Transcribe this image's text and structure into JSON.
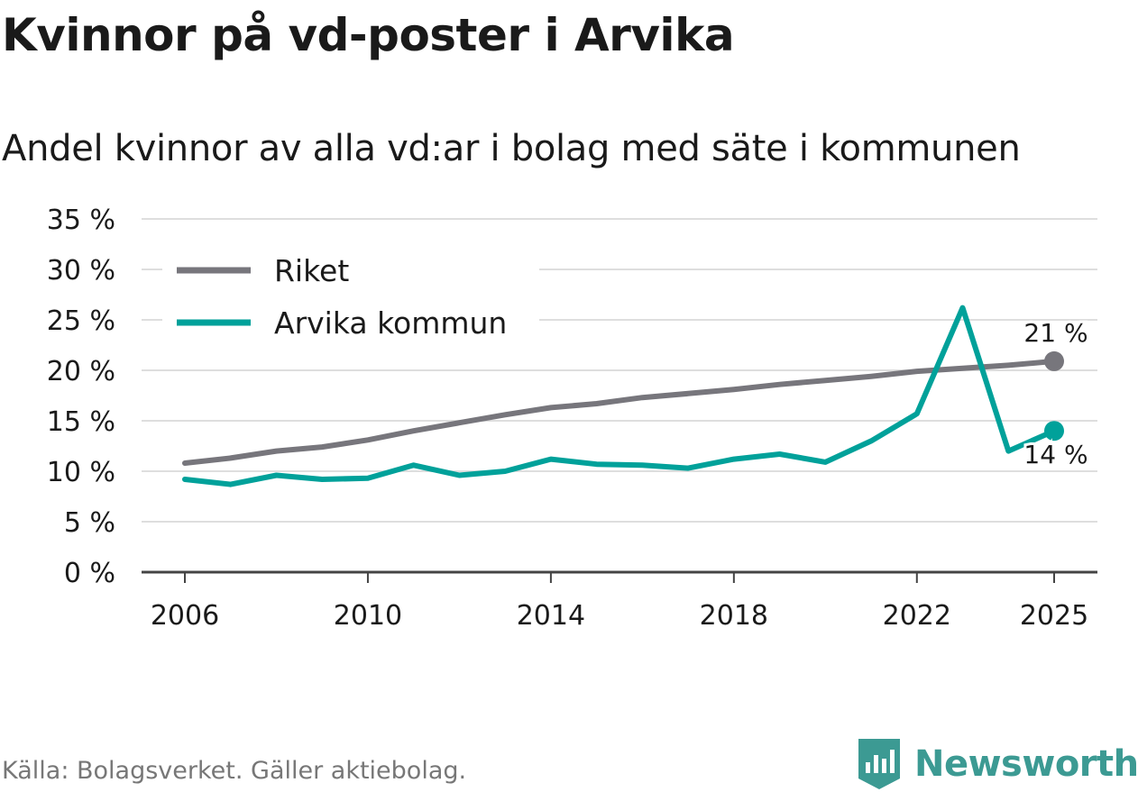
{
  "title": "Kvinnor på vd-poster i Arvika",
  "subtitle": "Andel kvinnor av alla vd:ar i bolag med säte i kommunen",
  "source": "Källa: Bolagsverket. Gäller aktiebolag.",
  "brand": {
    "name": "Newsworthy",
    "icon": "newsworthy-logo-icon"
  },
  "colors": {
    "riket": "#77767c",
    "arvika": "#00a19a",
    "grid": "#dedede",
    "axis": "#444444"
  },
  "chart_data": {
    "type": "line",
    "title": "Kvinnor på vd-poster i Arvika",
    "subtitle": "Andel kvinnor av alla vd:ar i bolag med säte i kommunen",
    "xlabel": "",
    "ylabel": "",
    "x": [
      2006,
      2007,
      2008,
      2009,
      2010,
      2011,
      2012,
      2013,
      2014,
      2015,
      2016,
      2017,
      2018,
      2019,
      2020,
      2021,
      2022,
      2023,
      2024,
      2025
    ],
    "x_ticks": [
      2006,
      2010,
      2014,
      2018,
      2022,
      2025
    ],
    "x_tick_labels": [
      "2006",
      "2010",
      "2014",
      "2018",
      "2022",
      "2025"
    ],
    "ylim": [
      0,
      35
    ],
    "y_ticks": [
      0,
      5,
      10,
      15,
      20,
      25,
      30,
      35
    ],
    "y_tick_labels": [
      "0 %",
      "5 %",
      "10 %",
      "15 %",
      "20 %",
      "25 %",
      "30 %",
      "35 %"
    ],
    "grid": true,
    "legend_position": "top-left",
    "series": [
      {
        "name": "Riket",
        "color": "#77767c",
        "values": [
          10.8,
          11.3,
          12.0,
          12.4,
          13.1,
          14.0,
          14.8,
          15.6,
          16.3,
          16.7,
          17.3,
          17.7,
          18.1,
          18.6,
          19.0,
          19.4,
          19.9,
          20.2,
          20.5,
          20.9
        ],
        "end_label": "21 %"
      },
      {
        "name": "Arvika kommun",
        "color": "#00a19a",
        "values": [
          9.2,
          8.7,
          9.6,
          9.2,
          9.3,
          10.6,
          9.6,
          10.0,
          11.2,
          10.7,
          10.6,
          10.3,
          11.2,
          11.7,
          10.9,
          13.0,
          15.7,
          26.2,
          12.0,
          14.0
        ],
        "end_label": "14 %"
      }
    ]
  }
}
